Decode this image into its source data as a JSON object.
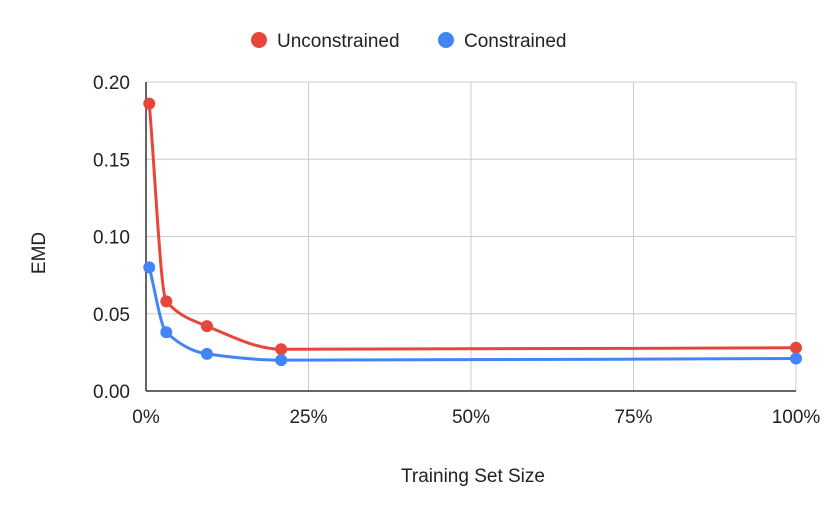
{
  "chart_data": {
    "type": "line",
    "title": "",
    "xlabel": "Training Set Size",
    "ylabel": "EMD",
    "xlim": [
      0,
      100
    ],
    "ylim": [
      0,
      0.2
    ],
    "x_ticks": [
      0,
      25,
      50,
      75,
      100
    ],
    "x_tick_labels": [
      "0%",
      "25%",
      "50%",
      "75%",
      "100%"
    ],
    "y_ticks": [
      0,
      0.05,
      0.1,
      0.15,
      0.2
    ],
    "y_tick_labels": [
      "0.00",
      "0.05",
      "0.10",
      "0.15",
      "0.20"
    ],
    "grid": true,
    "legend": "top-center",
    "smooth": true,
    "series": [
      {
        "name": "Unconstrained",
        "color": "#e8463b",
        "x": [
          0.5,
          3.125,
          9.375,
          20.8,
          100
        ],
        "y": [
          0.186,
          0.058,
          0.042,
          0.027,
          0.028
        ]
      },
      {
        "name": "Constrained",
        "color": "#4285f4",
        "x": [
          0.5,
          3.125,
          9.375,
          20.8,
          100
        ],
        "y": [
          0.08,
          0.038,
          0.024,
          0.02,
          0.021
        ]
      }
    ]
  }
}
